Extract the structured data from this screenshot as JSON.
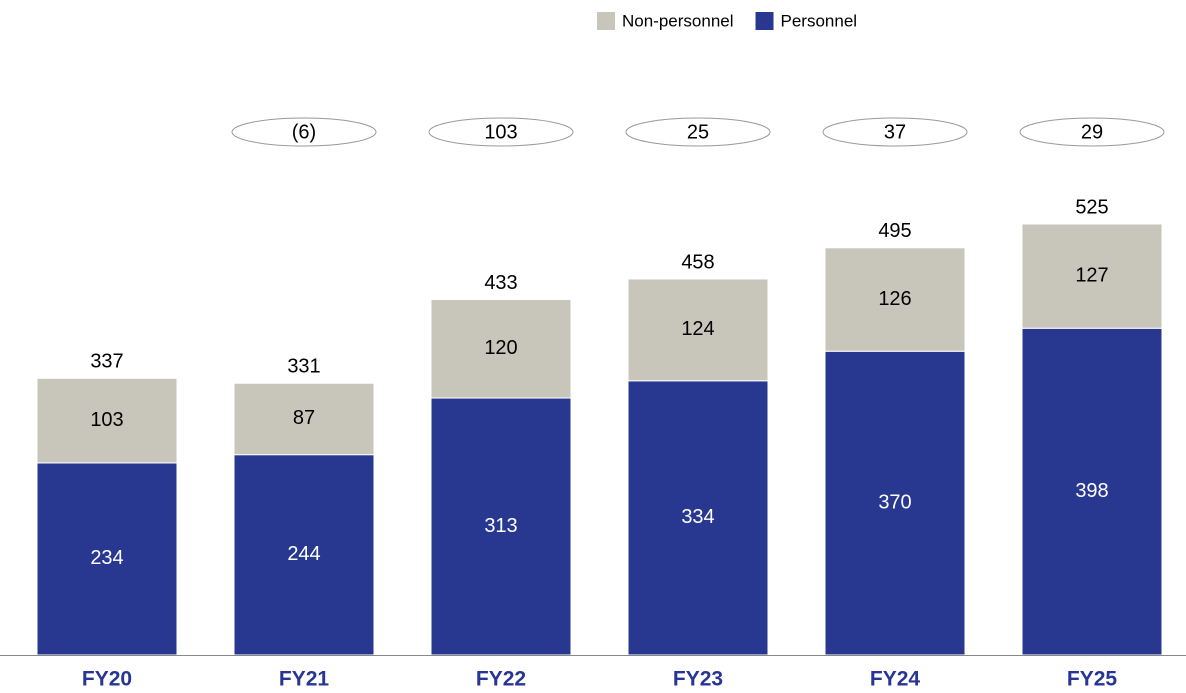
{
  "chart_data": {
    "type": "stacked_bar",
    "categories": [
      "FY20",
      "FY21",
      "FY22",
      "FY23",
      "FY24",
      "FY25"
    ],
    "series": [
      {
        "name": "Personnel",
        "color": "#283891",
        "values": [
          234,
          244,
          313,
          334,
          370,
          398
        ]
      },
      {
        "name": "Non-personnel",
        "color": "#c8c6bb",
        "values": [
          103,
          87,
          120,
          124,
          126,
          127
        ]
      }
    ],
    "totals": [
      337,
      331,
      433,
      458,
      495,
      525
    ],
    "changes": {
      "values": [
        null,
        -6,
        103,
        25,
        37,
        29
      ],
      "value_labels": [
        null,
        "(6)",
        null,
        null,
        null,
        null
      ]
    },
    "legend": "top"
  }
}
